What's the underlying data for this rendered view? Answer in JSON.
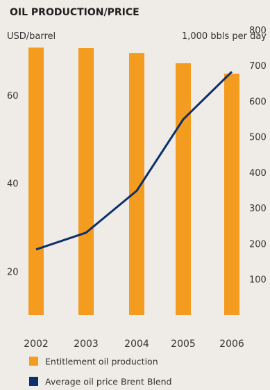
{
  "chart_data": {
    "type": "bar+line",
    "title": "OIL PRODUCTION/PRICE",
    "categories": [
      "2002",
      "2003",
      "2004",
      "2005",
      "2006"
    ],
    "left_axis": {
      "label": "USD/barrel",
      "ticks": [
        "20",
        "40",
        "60"
      ],
      "tick_values": [
        20,
        40,
        60
      ]
    },
    "right_axis": {
      "label": "1,000 bbls per day",
      "ticks": [
        "100",
        "200",
        "300",
        "400",
        "500",
        "600",
        "700",
        "800"
      ],
      "tick_values": [
        100,
        200,
        300,
        400,
        500,
        600,
        700,
        800
      ]
    },
    "series": [
      {
        "name": "Entitlement oil production",
        "type": "bar",
        "axis": "right",
        "color": "#f39c1f",
        "values": [
          750,
          749,
          735,
          706,
          677
        ]
      },
      {
        "name": "Average oil price Brent Blend",
        "type": "line",
        "axis": "left",
        "color": "#0d2f6b",
        "values": [
          25.0,
          28.8,
          38.3,
          54.5,
          65.3
        ]
      }
    ],
    "legend_position": "bottom-left",
    "grid": false
  }
}
